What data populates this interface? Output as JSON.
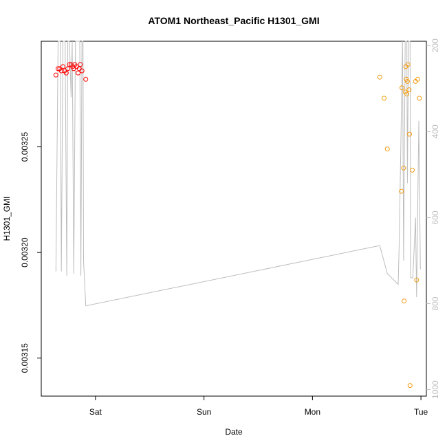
{
  "chart_data": {
    "type": "scatter",
    "title": "ATOM1 Northeast_Pacific H1301_GMI",
    "xlabel": "Date",
    "ylabel": "H1301_GMI",
    "x_unit": "days",
    "x_ticks": [
      {
        "label": "Sat",
        "value": 1.0
      },
      {
        "label": "Sun",
        "value": 2.0
      },
      {
        "label": "Mon",
        "value": 3.0
      },
      {
        "label": "Tue",
        "value": 4.0
      }
    ],
    "xlim": [
      0.5,
      4.05
    ],
    "ylim": [
      0.003132,
      0.0033
    ],
    "y_ticks": [
      {
        "label": "0.00315",
        "value": 0.00315
      },
      {
        "label": "0.00320",
        "value": 0.0032
      },
      {
        "label": "0.00325",
        "value": 0.00325
      }
    ],
    "y2lim": [
      1015,
      190
    ],
    "y2_ticks": [
      {
        "label": "200",
        "value": 200
      },
      {
        "label": "400",
        "value": 400
      },
      {
        "label": "600",
        "value": 600
      },
      {
        "label": "800",
        "value": 800
      },
      {
        "label": "1000",
        "value": 1000
      }
    ],
    "grid": false,
    "colors": {
      "series_red": "#ff0000",
      "series_orange": "#f39c12",
      "pressure_line": "#bdbdbd",
      "axis": "#000000",
      "right_axis": "#bdbdbd"
    },
    "series": [
      {
        "marker": "circle-open",
        "color": "#ff0000",
        "points": [
          [
            0.635,
            0.003284
          ],
          [
            0.655,
            0.003287
          ],
          [
            0.67,
            0.003287
          ],
          [
            0.685,
            0.003286
          ],
          [
            0.7,
            0.003288
          ],
          [
            0.715,
            0.003286
          ],
          [
            0.73,
            0.003285
          ],
          [
            0.745,
            0.003287
          ],
          [
            0.76,
            0.003289
          ],
          [
            0.775,
            0.003289
          ],
          [
            0.79,
            0.003288
          ],
          [
            0.8,
            0.003287
          ],
          [
            0.81,
            0.003289
          ],
          [
            0.825,
            0.003288
          ],
          [
            0.84,
            0.003285
          ],
          [
            0.85,
            0.003287
          ],
          [
            0.86,
            0.003289
          ],
          [
            0.875,
            0.003286
          ],
          [
            0.91,
            0.003282
          ]
        ]
      },
      {
        "marker": "circle-open",
        "color": "#f39c12",
        "points": [
          [
            3.62,
            0.003283
          ],
          [
            3.66,
            0.003273
          ],
          [
            3.69,
            0.003249
          ],
          [
            3.82,
            0.003229
          ],
          [
            3.825,
            0.003278
          ],
          [
            3.84,
            0.00324
          ],
          [
            3.845,
            0.003177
          ],
          [
            3.855,
            0.003276
          ],
          [
            3.86,
            0.003288
          ],
          [
            3.865,
            0.003282
          ],
          [
            3.87,
            0.003275
          ],
          [
            3.875,
            0.003281
          ],
          [
            3.88,
            0.003289
          ],
          [
            3.89,
            0.003277
          ],
          [
            3.895,
            0.003256
          ],
          [
            3.9,
            0.003137
          ],
          [
            3.92,
            0.003239
          ],
          [
            3.95,
            0.003281
          ],
          [
            3.96,
            0.003187
          ],
          [
            3.97,
            0.003282
          ],
          [
            3.985,
            0.003273
          ]
        ]
      },
      {
        "type": "line",
        "axis": "right",
        "color": "#bdbdbd",
        "points": [
          [
            0.635,
            725
          ],
          [
            0.655,
            120
          ],
          [
            0.665,
            120
          ],
          [
            0.675,
            100
          ],
          [
            0.685,
            725
          ],
          [
            0.7,
            120
          ],
          [
            0.72,
            120
          ],
          [
            0.735,
            735
          ],
          [
            0.745,
            120
          ],
          [
            0.76,
            120
          ],
          [
            0.775,
            320
          ],
          [
            0.785,
            120
          ],
          [
            0.8,
            730
          ],
          [
            0.815,
            120
          ],
          [
            0.825,
            120
          ],
          [
            0.84,
            120
          ],
          [
            0.855,
            120
          ],
          [
            0.865,
            735
          ],
          [
            0.875,
            120
          ],
          [
            0.885,
            120
          ],
          [
            0.89,
            700
          ],
          [
            0.91,
            805
          ],
          [
            3.62,
            665
          ],
          [
            3.69,
            730
          ],
          [
            3.79,
            755
          ],
          [
            3.8,
            655
          ],
          [
            3.83,
            100
          ],
          [
            3.84,
            700
          ],
          [
            3.855,
            100
          ],
          [
            3.87,
            100
          ],
          [
            3.875,
            520
          ],
          [
            3.885,
            100
          ],
          [
            3.9,
            100
          ],
          [
            3.905,
            740
          ],
          [
            3.925,
            740
          ],
          [
            3.95,
            600
          ],
          [
            3.96,
            785
          ],
          [
            3.98,
            375
          ],
          [
            3.995,
            720
          ]
        ]
      }
    ]
  }
}
